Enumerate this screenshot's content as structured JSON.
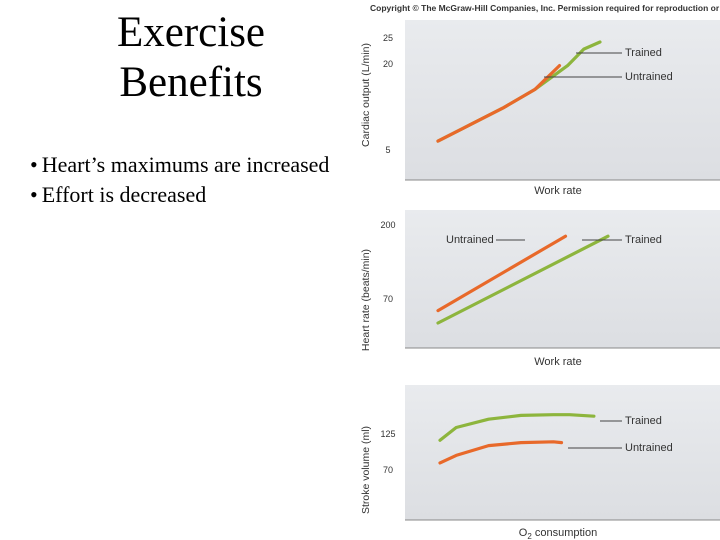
{
  "slide": {
    "title_line1": "Exercise",
    "title_line2": "Benefits",
    "bullets": [
      "Heart’s maximums are increased",
      "Effort is decreased"
    ]
  },
  "figure": {
    "copyright": "Copyright © The McGraw-Hill Companies, Inc. Permission required for reproduction or display."
  },
  "colors": {
    "trained": "#8db53d",
    "untrained": "#e8692a",
    "panel_bg": "#e4e6ea",
    "axis": "#555555"
  },
  "chart_data": [
    {
      "type": "line",
      "title": "",
      "xlabel": "Work rate",
      "ylabel": "Cardiac output (L/min)",
      "yticks": [
        "25",
        "20",
        "5"
      ],
      "ylim": [
        0,
        25
      ],
      "series": [
        {
          "name": "Trained",
          "label": "Trained",
          "x": [
            0,
            0.2,
            0.4,
            0.6,
            0.8,
            0.9,
            1.0
          ],
          "y": [
            4,
            7.5,
            11,
            15,
            20,
            23.5,
            25
          ]
        },
        {
          "name": "Untrained",
          "label": "Untrained",
          "x": [
            0,
            0.2,
            0.4,
            0.6,
            0.75
          ],
          "y": [
            4,
            7.5,
            11,
            15,
            20
          ]
        }
      ]
    },
    {
      "type": "line",
      "title": "",
      "xlabel": "Work rate",
      "ylabel": "Heart rate (beats/min)",
      "yticks": [
        "200",
        "70"
      ],
      "ylim": [
        50,
        200
      ],
      "series": [
        {
          "name": "Untrained",
          "label": "Untrained",
          "x": [
            0,
            0.75
          ],
          "y": [
            70,
            190
          ]
        },
        {
          "name": "Trained",
          "label": "Trained",
          "x": [
            0,
            1.0
          ],
          "y": [
            50,
            190
          ]
        }
      ]
    },
    {
      "type": "line",
      "title": "",
      "xlabel": "O2 consumption",
      "ylabel": "Stroke volume (ml)",
      "yticks": [
        "125",
        "70"
      ],
      "ylim": [
        45,
        175
      ],
      "series": [
        {
          "name": "Trained",
          "label": "Trained",
          "x": [
            0,
            0.1,
            0.3,
            0.5,
            0.7,
            0.8,
            0.95
          ],
          "y": [
            95,
            112,
            123,
            128,
            129,
            129,
            127
          ]
        },
        {
          "name": "Untrained",
          "label": "Untrained",
          "x": [
            0,
            0.1,
            0.3,
            0.5,
            0.7,
            0.75
          ],
          "y": [
            65,
            75,
            88,
            92,
            93,
            92
          ]
        }
      ]
    }
  ]
}
